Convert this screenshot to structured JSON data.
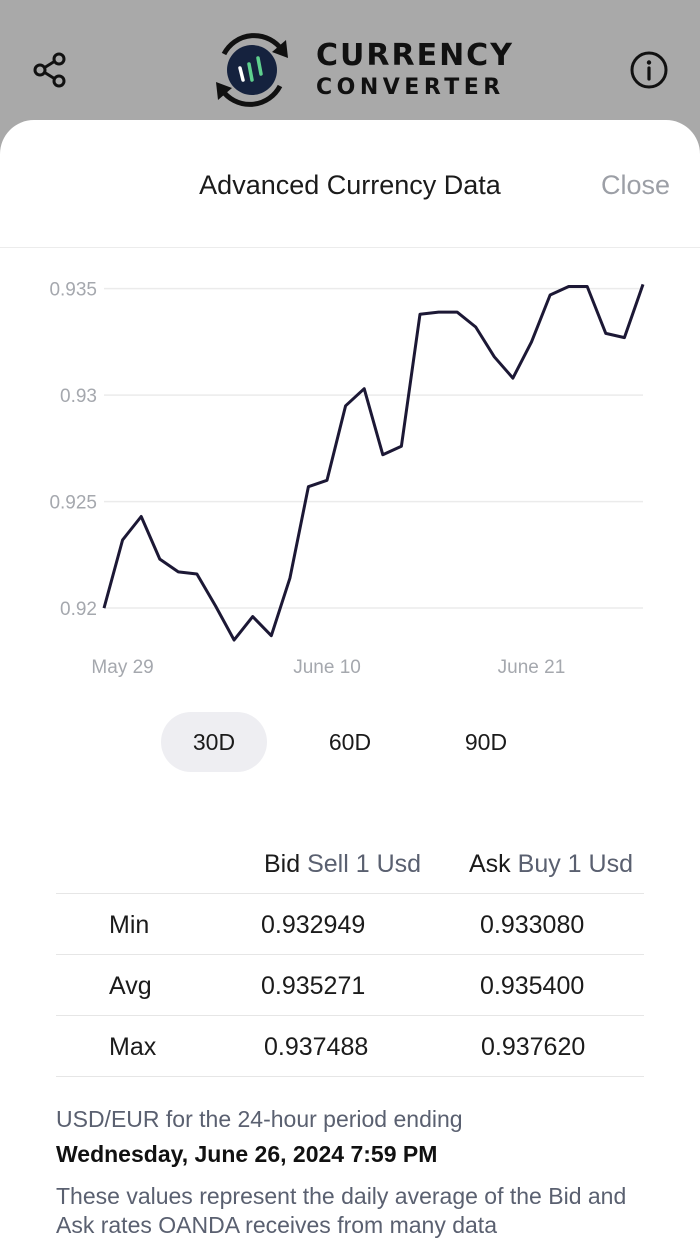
{
  "app": {
    "logo_line1": "CURRENCY",
    "logo_line2": "CONVERTER",
    "icons": {
      "share": "share-icon",
      "info": "info-icon",
      "logo": "currency-logo-icon"
    }
  },
  "sheet": {
    "title": "Advanced Currency Data",
    "close_label": "Close"
  },
  "chart_data": {
    "type": "line",
    "y_ticks": [
      "0.935",
      "0.93",
      "0.925",
      "0.92"
    ],
    "y_tick_values": [
      0.935,
      0.93,
      0.925,
      0.92
    ],
    "x_labels": [
      "May 29",
      "June 10",
      "June 21"
    ],
    "x_label_index": [
      1,
      12,
      23
    ],
    "ylim": [
      0.9185,
      0.9355
    ],
    "grid": true,
    "color": "#1c1835",
    "values": [
      0.92,
      0.9232,
      0.9243,
      0.9223,
      0.9217,
      0.9216,
      0.9201,
      0.9185,
      0.9196,
      0.9187,
      0.9214,
      0.9257,
      0.926,
      0.9295,
      0.9303,
      0.9272,
      0.9276,
      0.9338,
      0.9339,
      0.9339,
      0.9332,
      0.9318,
      0.9308,
      0.9325,
      0.9347,
      0.9351,
      0.9351,
      0.9329,
      0.9327,
      0.9352
    ]
  },
  "range_tabs": [
    {
      "label": "30D",
      "active": true
    },
    {
      "label": "60D",
      "active": false
    },
    {
      "label": "90D",
      "active": false
    }
  ],
  "rates": {
    "bid_label": "Bid",
    "bid_sub": "Sell 1 Usd",
    "ask_label": "Ask",
    "ask_sub": "Buy 1 Usd",
    "rows": [
      {
        "label": "Min",
        "bid": "0.932949",
        "ask": "0.933080"
      },
      {
        "label": "Avg",
        "bid": "0.935271",
        "ask": "0.935400"
      },
      {
        "label": "Max",
        "bid": "0.937488",
        "ask": "0.937620"
      }
    ]
  },
  "footer": {
    "period": "USD/EUR for the 24-hour period ending",
    "date": "Wednesday, June 26, 2024 7:59 PM",
    "description": "These values represent the daily average of the Bid and Ask rates OANDA receives from many data"
  }
}
